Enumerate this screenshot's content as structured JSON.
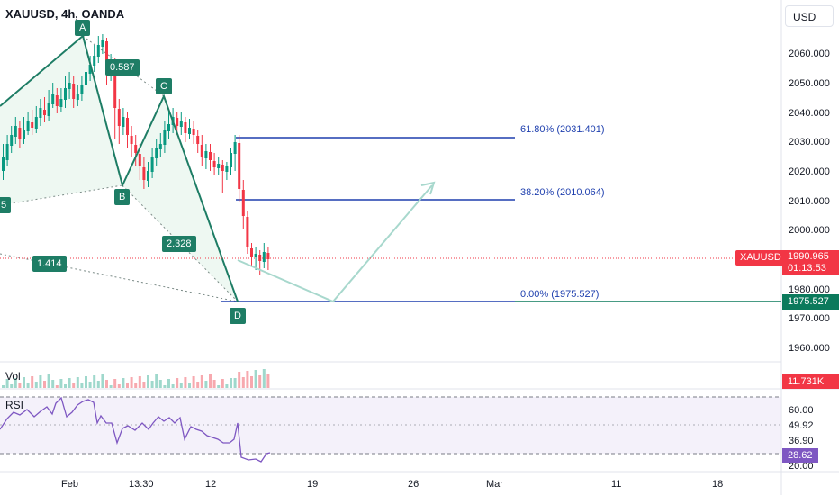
{
  "header": {
    "title": "XAUUSD, 4h, OANDA"
  },
  "currency_button": {
    "label": "USD"
  },
  "price_axis": {
    "ticks": [
      "2060.000",
      "2050.000",
      "2040.000",
      "2030.000",
      "2020.000",
      "2010.000",
      "2000.000",
      "1980.000",
      "1970.000",
      "1960.000"
    ]
  },
  "time_axis": {
    "ticks": [
      "Feb",
      "13:30",
      "12",
      "19",
      "26",
      "Mar",
      "11",
      "18"
    ]
  },
  "harmonic": {
    "points": [
      "A",
      "B",
      "C",
      "D"
    ],
    "left_point_partial": "5",
    "ratios": [
      "0.587",
      "2.328",
      "1.414"
    ]
  },
  "fib": {
    "levels": [
      "61.80% (2031.401)",
      "38.20% (2010.064)",
      "0.00% (1975.527)"
    ]
  },
  "price_tags": {
    "symbol": "XAUUSD",
    "last_price": "1990.965",
    "countdown": "01:13:53",
    "fib_zero": "1975.527",
    "volume": "11.731K"
  },
  "volume_pane": {
    "label": "Vol"
  },
  "rsi_pane": {
    "label": "RSI",
    "axis_ticks": [
      "60.00",
      "49.92",
      "36.90",
      "20.00"
    ],
    "value": "28.62"
  },
  "colors": {
    "up": "#089981",
    "down": "#f23645",
    "pattern": "#1e7d65",
    "fib": "#1e3fae",
    "rsi": "#7e57c2"
  }
}
